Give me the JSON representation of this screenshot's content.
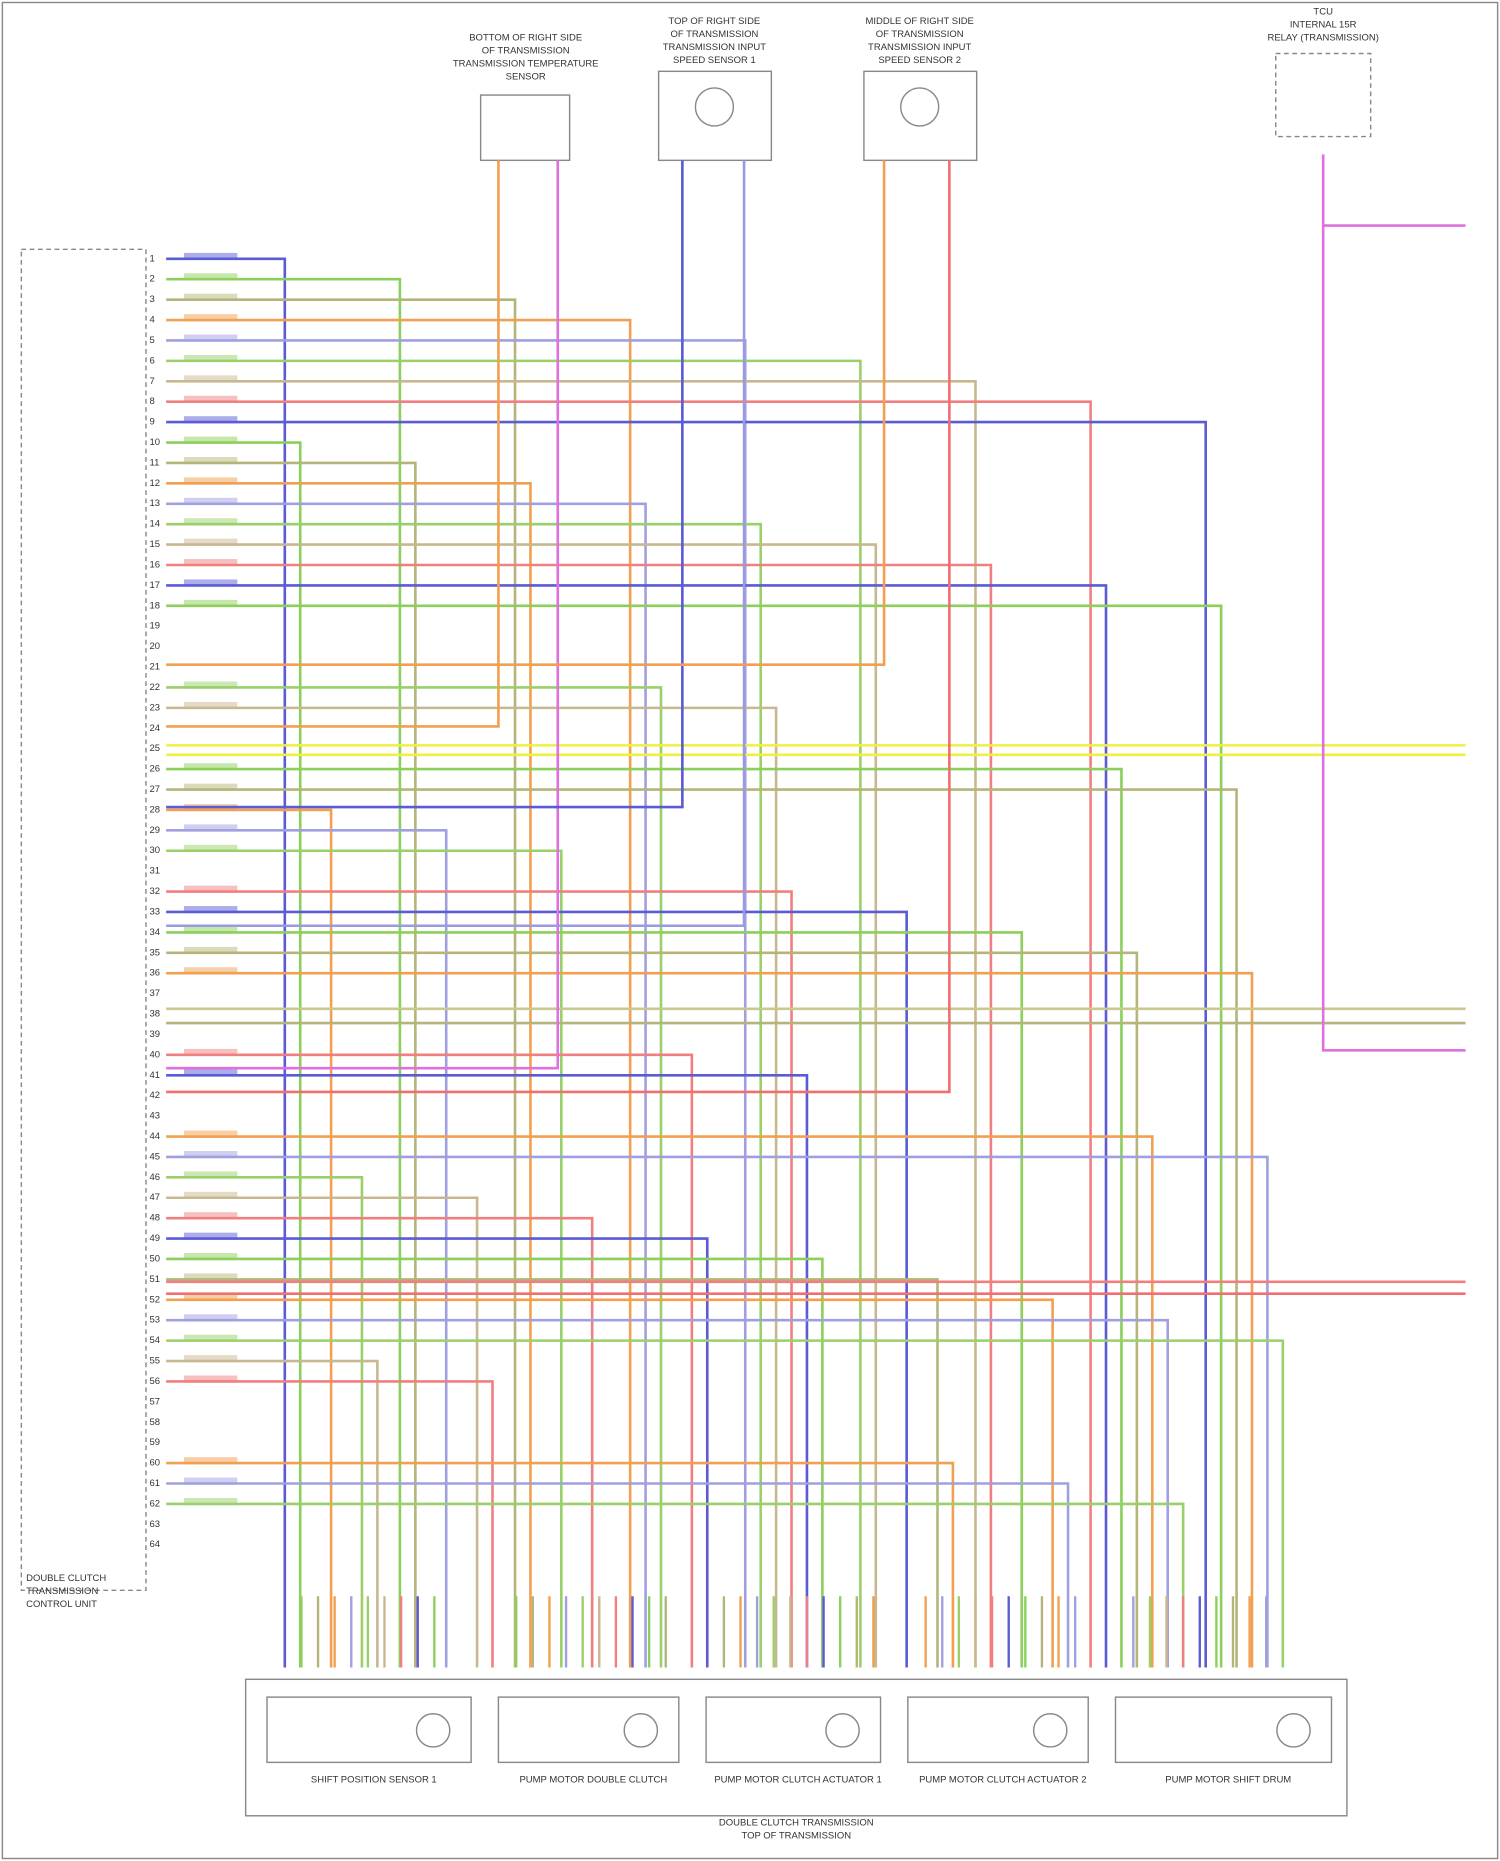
{
  "sensors": [
    {
      "lines": [
        "BOTTOM OF RIGHT SIDE",
        "OF TRANSMISSION",
        "TRANSMISSION TEMPERATURE",
        "SENSOR"
      ]
    },
    {
      "lines": [
        "TOP OF RIGHT SIDE",
        "OF TRANSMISSION",
        "TRANSMISSION INPUT",
        "SPEED SENSOR 1"
      ]
    },
    {
      "lines": [
        "MIDDLE OF RIGHT SIDE",
        "OF TRANSMISSION",
        "TRANSMISSION INPUT",
        "SPEED SENSOR 2"
      ]
    },
    {
      "lines": [
        "TCU",
        "INTERNAL 15R",
        "RELAY (TRANSMISSION)"
      ]
    }
  ],
  "tcu_label": [
    "DOUBLE CLUTCH",
    "TRANSMISSION",
    "CONTROL UNIT"
  ],
  "modules": [
    "SHIFT POSITION SENSOR 1",
    "PUMP MOTOR DOUBLE CLUTCH",
    "PUMP MOTOR CLUTCH ACTUATOR 1",
    "PUMP MOTOR CLUTCH ACTUATOR 2",
    "PUMP MOTOR SHIFT DRUM"
  ],
  "assembly_label": [
    "DOUBLE CLUTCH TRANSMISSION",
    "TOP OF TRANSMISSION"
  ],
  "tcu_pins": [
    1,
    2,
    3,
    4,
    5,
    6,
    7,
    8,
    9,
    10,
    11,
    12,
    13,
    14,
    15,
    16,
    17,
    18,
    19,
    20,
    21,
    22,
    23,
    24,
    25,
    26,
    27,
    28,
    29,
    30,
    31,
    32,
    33,
    34,
    35,
    36,
    37,
    38,
    39,
    40,
    41,
    42,
    43,
    44,
    45,
    46,
    47,
    48,
    49,
    50,
    51,
    52,
    53,
    54,
    55,
    56,
    57,
    58,
    59,
    60,
    61,
    62,
    63,
    64
  ]
}
